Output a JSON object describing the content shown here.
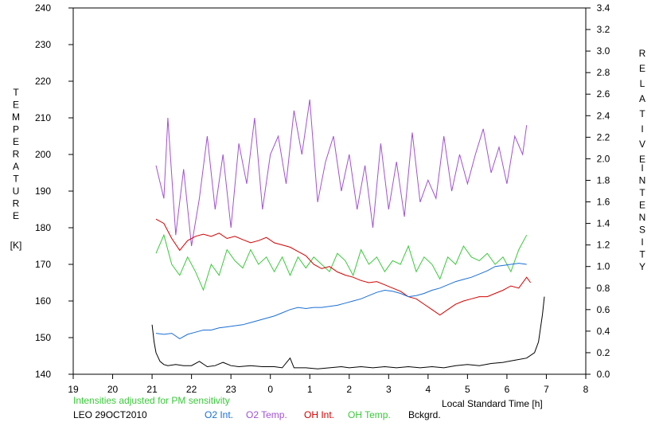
{
  "chart_data": {
    "type": "line",
    "y_left": {
      "label_letters": [
        "T",
        "E",
        "M",
        "P",
        "E",
        "R",
        "A",
        "T",
        "U",
        "R",
        "E"
      ],
      "unit": "[K]",
      "ticks": [
        140,
        150,
        160,
        170,
        180,
        190,
        200,
        210,
        220,
        230,
        240
      ],
      "range": [
        140,
        240
      ]
    },
    "y_right": {
      "label_word1": [
        "R",
        "E",
        "L",
        "A",
        "T",
        "I",
        "V",
        "E"
      ],
      "label_word2": [
        "I",
        "N",
        "T",
        "E",
        "N",
        "S",
        "I",
        "T",
        "Y"
      ],
      "ticks": [
        "0.0",
        "0.2",
        "0.4",
        "0.6",
        "0.8",
        "1.0",
        "1.2",
        "1.4",
        "1.6",
        "1.8",
        "2.0",
        "2.2",
        "2.4",
        "2.6",
        "2.8",
        "3.0",
        "3.2",
        "3.4"
      ],
      "range": [
        0,
        3.4
      ]
    },
    "x": {
      "label": "Local Standard Time [h]",
      "tick_labels": [
        "19",
        "20",
        "21",
        "22",
        "23",
        "0",
        "1",
        "2",
        "3",
        "4",
        "5",
        "6",
        "7",
        "8"
      ],
      "range": [
        19,
        32
      ]
    },
    "notes": {
      "adjusted": "Intensities adjusted for PM sensitivity",
      "station": "LEO 29OCT2010"
    },
    "legend": [
      {
        "label": "O2 Int.",
        "color": "#1a6fd6"
      },
      {
        "label": "O2 Temp.",
        "color": "#a052d2"
      },
      {
        "label": "OH Int.",
        "color": "#d40000"
      },
      {
        "label": "OH Temp.",
        "color": "#3cc83c"
      },
      {
        "label": "Bckgrd.",
        "color": "#000000"
      }
    ],
    "series": [
      {
        "name": "O2 Temp.",
        "axis": "left",
        "color": "#a052d2",
        "points": [
          [
            21.1,
            197
          ],
          [
            21.3,
            188
          ],
          [
            21.4,
            210
          ],
          [
            21.6,
            178
          ],
          [
            21.8,
            196
          ],
          [
            22.0,
            175
          ],
          [
            22.2,
            188
          ],
          [
            22.4,
            205
          ],
          [
            22.6,
            185
          ],
          [
            22.8,
            200
          ],
          [
            23.0,
            180
          ],
          [
            23.2,
            203
          ],
          [
            23.4,
            192
          ],
          [
            23.6,
            210
          ],
          [
            23.8,
            185
          ],
          [
            24.0,
            200
          ],
          [
            24.2,
            205
          ],
          [
            24.4,
            192
          ],
          [
            24.6,
            212
          ],
          [
            24.8,
            200
          ],
          [
            25.0,
            215
          ],
          [
            25.2,
            187
          ],
          [
            25.4,
            198
          ],
          [
            25.6,
            205
          ],
          [
            25.8,
            190
          ],
          [
            26.0,
            200
          ],
          [
            26.2,
            185
          ],
          [
            26.4,
            197
          ],
          [
            26.6,
            180
          ],
          [
            26.8,
            203
          ],
          [
            27.0,
            185
          ],
          [
            27.2,
            198
          ],
          [
            27.4,
            183
          ],
          [
            27.6,
            206
          ],
          [
            27.8,
            187
          ],
          [
            28.0,
            193
          ],
          [
            28.2,
            188
          ],
          [
            28.4,
            205
          ],
          [
            28.6,
            190
          ],
          [
            28.8,
            200
          ],
          [
            29.0,
            192
          ],
          [
            29.2,
            200
          ],
          [
            29.4,
            207
          ],
          [
            29.6,
            195
          ],
          [
            29.8,
            202
          ],
          [
            30.0,
            192
          ],
          [
            30.2,
            205
          ],
          [
            30.4,
            200
          ],
          [
            30.5,
            208
          ]
        ]
      },
      {
        "name": "OH Temp.",
        "axis": "left",
        "color": "#3cc83c",
        "points": [
          [
            21.1,
            173
          ],
          [
            21.3,
            178
          ],
          [
            21.5,
            170
          ],
          [
            21.7,
            167
          ],
          [
            21.9,
            172
          ],
          [
            22.1,
            168
          ],
          [
            22.3,
            163
          ],
          [
            22.5,
            170
          ],
          [
            22.7,
            167
          ],
          [
            22.9,
            174
          ],
          [
            23.1,
            171
          ],
          [
            23.3,
            169
          ],
          [
            23.5,
            174
          ],
          [
            23.7,
            170
          ],
          [
            23.9,
            172
          ],
          [
            24.1,
            168
          ],
          [
            24.3,
            172
          ],
          [
            24.5,
            167
          ],
          [
            24.7,
            172
          ],
          [
            24.9,
            169
          ],
          [
            25.1,
            172
          ],
          [
            25.3,
            170
          ],
          [
            25.5,
            168
          ],
          [
            25.7,
            173
          ],
          [
            25.9,
            171
          ],
          [
            26.1,
            167
          ],
          [
            26.3,
            174
          ],
          [
            26.5,
            170
          ],
          [
            26.7,
            172
          ],
          [
            26.9,
            168
          ],
          [
            27.1,
            171
          ],
          [
            27.3,
            170
          ],
          [
            27.5,
            175
          ],
          [
            27.7,
            168
          ],
          [
            27.9,
            172
          ],
          [
            28.1,
            170
          ],
          [
            28.3,
            166
          ],
          [
            28.5,
            172
          ],
          [
            28.7,
            170
          ],
          [
            28.9,
            175
          ],
          [
            29.1,
            172
          ],
          [
            29.3,
            171
          ],
          [
            29.5,
            173
          ],
          [
            29.7,
            170
          ],
          [
            29.9,
            172
          ],
          [
            30.1,
            168
          ],
          [
            30.3,
            174
          ],
          [
            30.5,
            178
          ]
        ]
      },
      {
        "name": "OH Int.",
        "axis": "right",
        "color": "#d40000",
        "points": [
          [
            21.1,
            1.44
          ],
          [
            21.3,
            1.4
          ],
          [
            21.5,
            1.26
          ],
          [
            21.7,
            1.15
          ],
          [
            21.9,
            1.24
          ],
          [
            22.1,
            1.28
          ],
          [
            22.3,
            1.3
          ],
          [
            22.5,
            1.28
          ],
          [
            22.7,
            1.31
          ],
          [
            22.9,
            1.26
          ],
          [
            23.1,
            1.28
          ],
          [
            23.3,
            1.25
          ],
          [
            23.5,
            1.22
          ],
          [
            23.7,
            1.24
          ],
          [
            23.9,
            1.27
          ],
          [
            24.1,
            1.22
          ],
          [
            24.3,
            1.2
          ],
          [
            24.5,
            1.18
          ],
          [
            24.7,
            1.14
          ],
          [
            24.9,
            1.1
          ],
          [
            25.1,
            1.02
          ],
          [
            25.3,
            0.98
          ],
          [
            25.5,
            1.0
          ],
          [
            25.7,
            0.95
          ],
          [
            25.9,
            0.92
          ],
          [
            26.1,
            0.9
          ],
          [
            26.3,
            0.87
          ],
          [
            26.5,
            0.85
          ],
          [
            26.7,
            0.86
          ],
          [
            26.9,
            0.83
          ],
          [
            27.1,
            0.8
          ],
          [
            27.3,
            0.77
          ],
          [
            27.5,
            0.72
          ],
          [
            27.7,
            0.7
          ],
          [
            27.9,
            0.65
          ],
          [
            28.1,
            0.6
          ],
          [
            28.3,
            0.55
          ],
          [
            28.5,
            0.6
          ],
          [
            28.7,
            0.65
          ],
          [
            28.9,
            0.68
          ],
          [
            29.1,
            0.7
          ],
          [
            29.3,
            0.72
          ],
          [
            29.5,
            0.72
          ],
          [
            29.7,
            0.75
          ],
          [
            29.9,
            0.78
          ],
          [
            30.1,
            0.82
          ],
          [
            30.3,
            0.8
          ],
          [
            30.5,
            0.9
          ],
          [
            30.6,
            0.85
          ]
        ]
      },
      {
        "name": "O2 Int.",
        "axis": "right",
        "color": "#1a6fd6",
        "points": [
          [
            21.1,
            0.38
          ],
          [
            21.3,
            0.37
          ],
          [
            21.5,
            0.38
          ],
          [
            21.7,
            0.33
          ],
          [
            21.9,
            0.37
          ],
          [
            22.1,
            0.39
          ],
          [
            22.3,
            0.41
          ],
          [
            22.5,
            0.41
          ],
          [
            22.7,
            0.43
          ],
          [
            22.9,
            0.44
          ],
          [
            23.1,
            0.45
          ],
          [
            23.3,
            0.46
          ],
          [
            23.5,
            0.48
          ],
          [
            23.7,
            0.5
          ],
          [
            23.9,
            0.52
          ],
          [
            24.1,
            0.54
          ],
          [
            24.3,
            0.57
          ],
          [
            24.5,
            0.6
          ],
          [
            24.7,
            0.62
          ],
          [
            24.9,
            0.61
          ],
          [
            25.1,
            0.62
          ],
          [
            25.3,
            0.62
          ],
          [
            25.5,
            0.63
          ],
          [
            25.7,
            0.64
          ],
          [
            25.9,
            0.66
          ],
          [
            26.1,
            0.68
          ],
          [
            26.3,
            0.7
          ],
          [
            26.5,
            0.73
          ],
          [
            26.7,
            0.76
          ],
          [
            26.9,
            0.78
          ],
          [
            27.1,
            0.77
          ],
          [
            27.3,
            0.75
          ],
          [
            27.5,
            0.72
          ],
          [
            27.7,
            0.73
          ],
          [
            27.9,
            0.75
          ],
          [
            28.1,
            0.78
          ],
          [
            28.3,
            0.8
          ],
          [
            28.5,
            0.83
          ],
          [
            28.7,
            0.86
          ],
          [
            28.9,
            0.88
          ],
          [
            29.1,
            0.9
          ],
          [
            29.3,
            0.93
          ],
          [
            29.5,
            0.96
          ],
          [
            29.7,
            1.0
          ],
          [
            29.9,
            1.01
          ],
          [
            30.1,
            1.02
          ],
          [
            30.3,
            1.03
          ],
          [
            30.5,
            1.02
          ]
        ]
      },
      {
        "name": "Bckgrd.",
        "axis": "right",
        "color": "#000000",
        "points": [
          [
            21.0,
            0.46
          ],
          [
            21.05,
            0.3
          ],
          [
            21.1,
            0.2
          ],
          [
            21.2,
            0.12
          ],
          [
            21.3,
            0.09
          ],
          [
            21.4,
            0.08
          ],
          [
            21.6,
            0.09
          ],
          [
            21.8,
            0.08
          ],
          [
            22.0,
            0.08
          ],
          [
            22.2,
            0.12
          ],
          [
            22.4,
            0.07
          ],
          [
            22.6,
            0.08
          ],
          [
            22.8,
            0.11
          ],
          [
            23.0,
            0.08
          ],
          [
            23.2,
            0.07
          ],
          [
            23.5,
            0.08
          ],
          [
            23.8,
            0.07
          ],
          [
            24.1,
            0.07
          ],
          [
            24.3,
            0.06
          ],
          [
            24.5,
            0.15
          ],
          [
            24.6,
            0.06
          ],
          [
            24.9,
            0.06
          ],
          [
            25.2,
            0.05
          ],
          [
            25.5,
            0.06
          ],
          [
            25.8,
            0.07
          ],
          [
            26.0,
            0.06
          ],
          [
            26.3,
            0.07
          ],
          [
            26.6,
            0.06
          ],
          [
            26.9,
            0.07
          ],
          [
            27.2,
            0.06
          ],
          [
            27.5,
            0.07
          ],
          [
            27.8,
            0.06
          ],
          [
            28.1,
            0.07
          ],
          [
            28.4,
            0.06
          ],
          [
            28.7,
            0.08
          ],
          [
            29.0,
            0.09
          ],
          [
            29.3,
            0.08
          ],
          [
            29.6,
            0.1
          ],
          [
            29.9,
            0.11
          ],
          [
            30.2,
            0.13
          ],
          [
            30.5,
            0.15
          ],
          [
            30.7,
            0.2
          ],
          [
            30.8,
            0.3
          ],
          [
            30.9,
            0.55
          ],
          [
            30.95,
            0.72
          ]
        ]
      }
    ]
  }
}
